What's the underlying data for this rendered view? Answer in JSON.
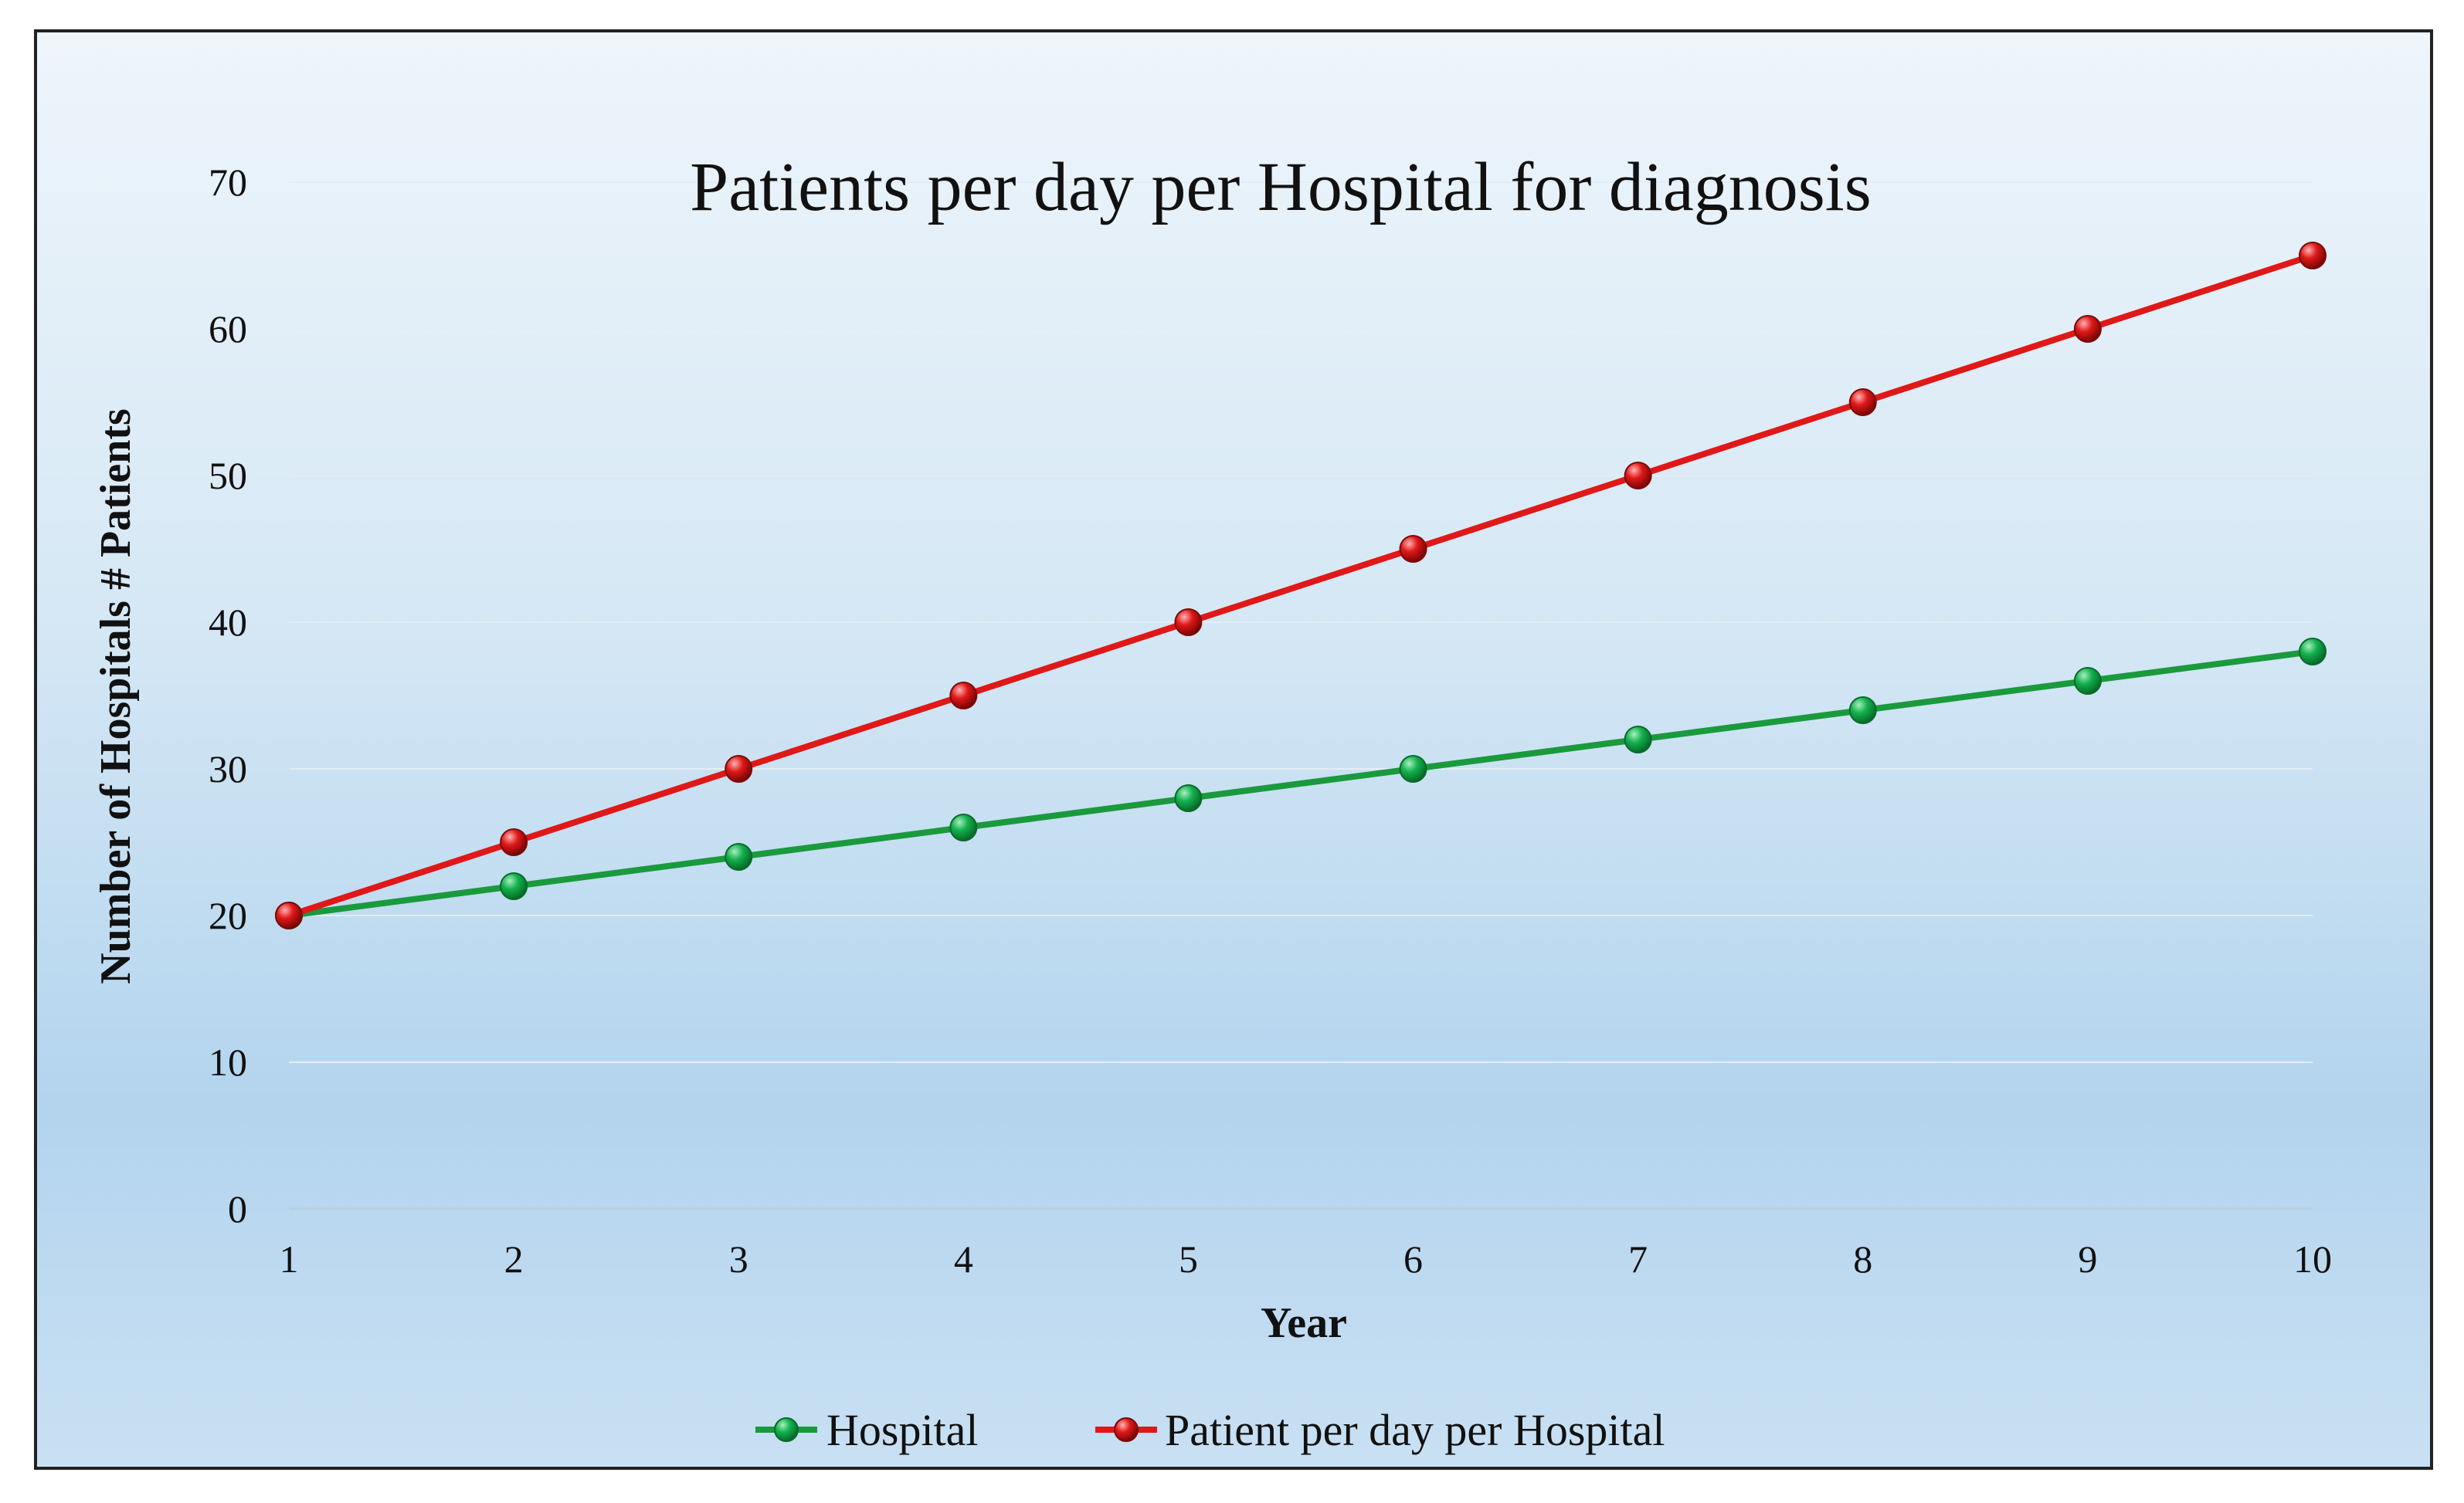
{
  "chart_data": {
    "type": "line",
    "title": "Patients per day per Hospital for diagnosis",
    "xlabel": "Year",
    "ylabel": "Number of Hospitals # Patients",
    "x": [
      1,
      2,
      3,
      4,
      5,
      6,
      7,
      8,
      9,
      10
    ],
    "x_tick_labels": [
      "1",
      "2",
      "3",
      "4",
      "5",
      "6",
      "7",
      "8",
      "9",
      "10"
    ],
    "y_tick_labels": [
      "0",
      "10",
      "20",
      "30",
      "40",
      "50",
      "60",
      "70"
    ],
    "ylim": [
      0,
      70
    ],
    "xlim": [
      1,
      10
    ],
    "grid": true,
    "legend_position": "bottom",
    "series": [
      {
        "name": "Hospital",
        "color": "#1a9a3c",
        "marker_color": "#12a84a",
        "values": [
          20,
          22,
          24,
          26,
          28,
          30,
          32,
          34,
          36,
          38
        ]
      },
      {
        "name": "Patient per day per Hospital",
        "color": "#e01818",
        "marker_color": "#d41414",
        "values": [
          20,
          25,
          30,
          35,
          40,
          45,
          50,
          55,
          60,
          65
        ]
      }
    ]
  }
}
